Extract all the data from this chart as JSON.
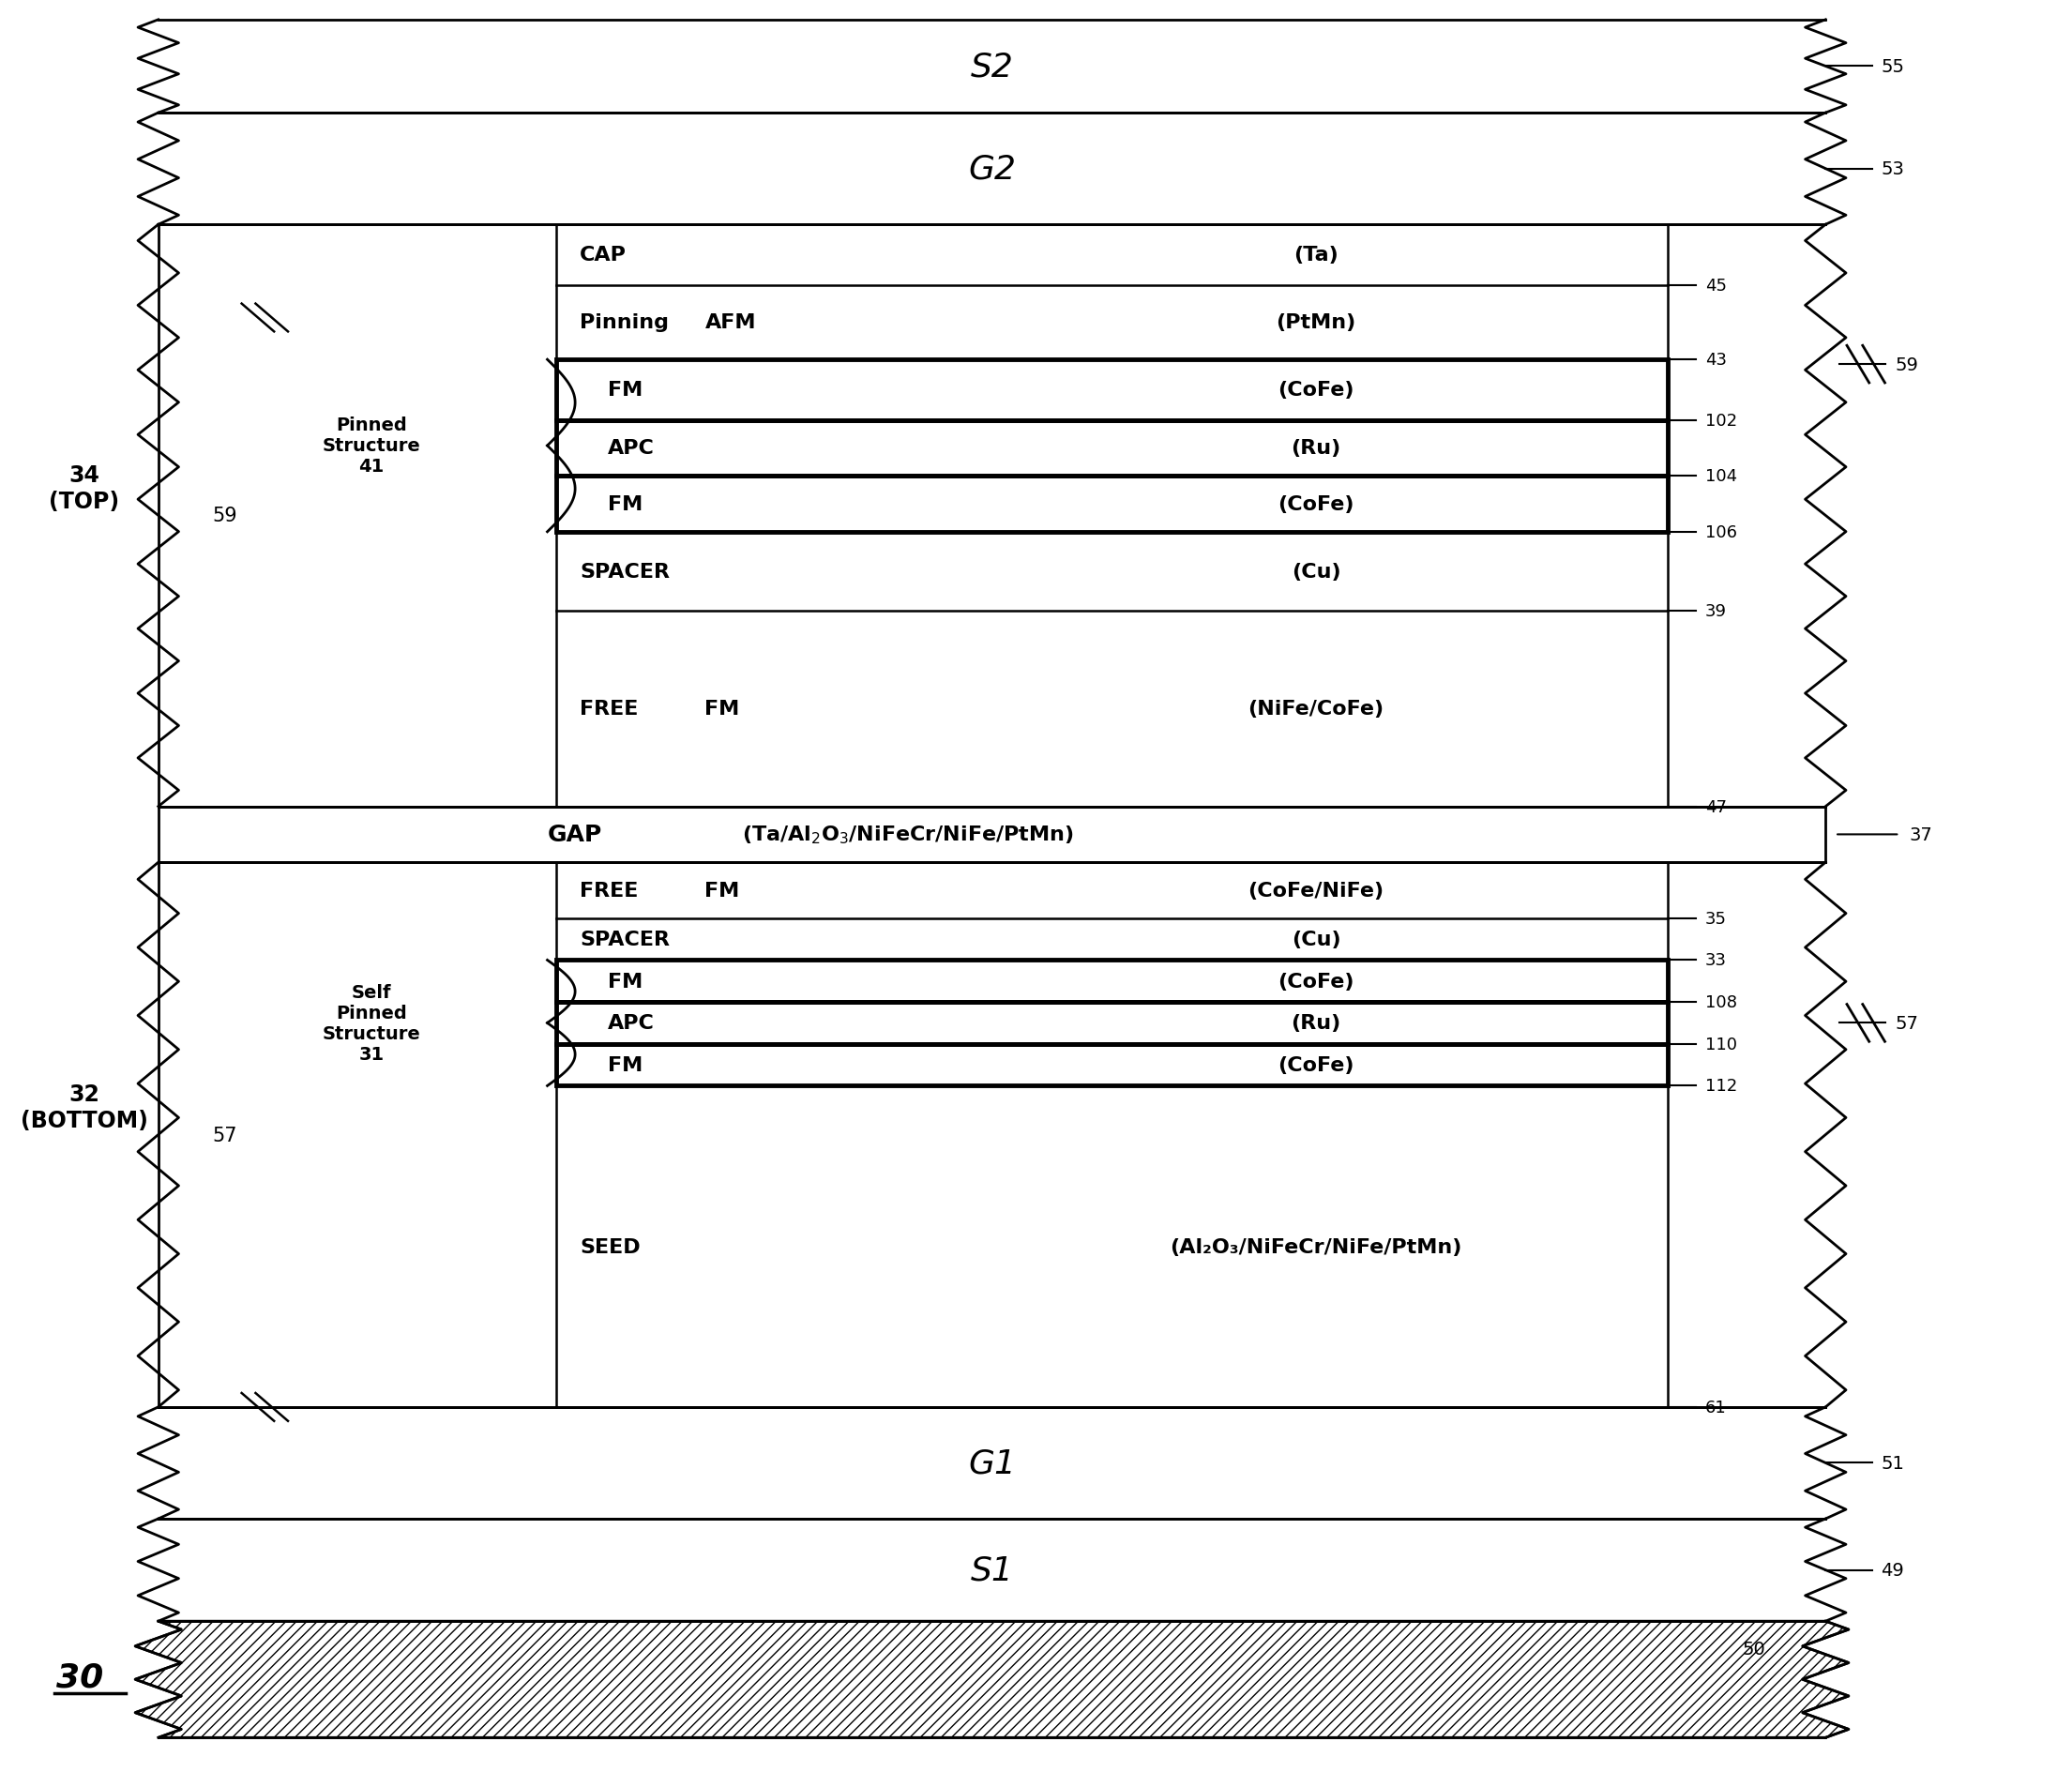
{
  "bg_color": "#ffffff",
  "line_color": "#000000",
  "top_layers": [
    {
      "label": "CAP",
      "sublabel": "",
      "material": "(Ta)",
      "ref": "45"
    },
    {
      "label": "Pinning",
      "sublabel": "AFM",
      "material": "(PtMn)",
      "ref": "43"
    },
    {
      "label": "",
      "sublabel": "FM",
      "material": "(CoFe)",
      "ref": "102",
      "bold_box": true
    },
    {
      "label": "",
      "sublabel": "APC",
      "material": "(Ru)",
      "ref": "104",
      "bold_box": true
    },
    {
      "label": "",
      "sublabel": "FM",
      "material": "(CoFe)",
      "ref": "106",
      "bold_box": true
    },
    {
      "label": "SPACER",
      "sublabel": "",
      "material": "(Cu)",
      "ref": "39",
      "bold_box": false
    },
    {
      "label": "FREE",
      "sublabel": "FM",
      "material": "(NiFe/CoFe)",
      "ref": "47",
      "bold_box": false
    }
  ],
  "bot_layers": [
    {
      "label": "FREE",
      "sublabel": "FM",
      "material": "(CoFe/NiFe)",
      "ref": "35",
      "bold_box": false
    },
    {
      "label": "SPACER",
      "sublabel": "",
      "material": "(Cu)",
      "ref": "33",
      "bold_box": false
    },
    {
      "label": "",
      "sublabel": "FM",
      "material": "(CoFe)",
      "ref": "108",
      "bold_box": true
    },
    {
      "label": "",
      "sublabel": "APC",
      "material": "(Ru)",
      "ref": "110",
      "bold_box": true
    },
    {
      "label": "",
      "sublabel": "FM",
      "material": "(CoFe)",
      "ref": "112",
      "bold_box": true
    },
    {
      "label": "SEED",
      "sublabel": "",
      "material": "(Al₂O₃/NiFeCr/NiFe/PtMn)",
      "ref": "61",
      "bold_box": false
    }
  ]
}
